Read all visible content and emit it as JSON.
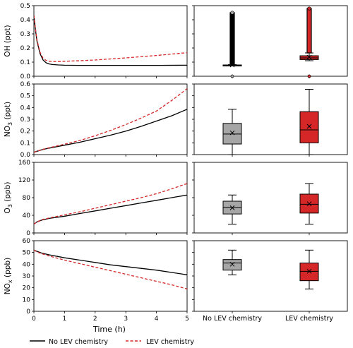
{
  "chart_data": {
    "type": "line",
    "xlabel": "Time (h)",
    "x_ticks": [
      0,
      1,
      2,
      3,
      4,
      5
    ],
    "xlim": [
      0,
      5
    ],
    "categories": [
      "No LEV chemistry",
      "LEV chemistry"
    ],
    "legend": {
      "placement": "bottom",
      "entries": [
        {
          "name": "No LEV chemistry",
          "color": "#000000",
          "style": "solid"
        },
        {
          "name": "LEV chemistry",
          "color": "#d62728",
          "style": "dashed"
        }
      ]
    },
    "box_colors": [
      "#a6a6a6",
      "#d62728"
    ],
    "panels": [
      {
        "ylabel_main": "OH (ppt)",
        "ylabel_sub": "",
        "ylim": [
          0,
          0.5
        ],
        "yticks": [
          0,
          0.1,
          0.2,
          0.3,
          0.4,
          0.5
        ],
        "ytick_labels": [
          "0.0",
          "0.1",
          "0.2",
          "0.3",
          "0.4",
          "0.5"
        ],
        "series": [
          {
            "name": "No LEV chemistry",
            "x": [
              0,
              0.05,
              0.1,
              0.2,
              0.3,
              0.4,
              0.5,
              0.6,
              0.8,
              1.0,
              1.5,
              2,
              3,
              4,
              5
            ],
            "y": [
              0.43,
              0.33,
              0.25,
              0.16,
              0.115,
              0.095,
              0.087,
              0.083,
              0.08,
              0.078,
              0.077,
              0.077,
              0.077,
              0.077,
              0.078
            ]
          },
          {
            "name": "LEV chemistry",
            "x": [
              0,
              0.05,
              0.1,
              0.2,
              0.3,
              0.4,
              0.5,
              0.6,
              0.8,
              1.0,
              1.5,
              2,
              3,
              4,
              5
            ],
            "y": [
              0.43,
              0.34,
              0.26,
              0.17,
              0.128,
              0.112,
              0.106,
              0.104,
              0.104,
              0.106,
              0.11,
              0.115,
              0.13,
              0.147,
              0.167
            ]
          }
        ],
        "boxes": [
          {
            "whisker_low": 0.078,
            "q1": 0.078,
            "median": 0.078,
            "q3": 0.08,
            "whisker_high": 0.082,
            "mean": 0.08,
            "outliers_dense": [
              0.082,
              0.45
            ],
            "outliers_extra": [
              0.0
            ]
          },
          {
            "whisker_low": 0.11,
            "q1": 0.118,
            "median": 0.13,
            "q3": 0.145,
            "whisker_high": 0.165,
            "mean": 0.135,
            "outliers_dense": [
              0.165,
              0.48
            ],
            "outliers_extra": [
              0.0
            ]
          }
        ]
      },
      {
        "ylabel_main": "NO",
        "ylabel_sub": "3",
        "ylabel_tail": " (ppt)",
        "ylim": [
          0,
          0.6
        ],
        "yticks": [
          0,
          0.1,
          0.2,
          0.3,
          0.4,
          0.5,
          0.6
        ],
        "ytick_labels": [
          "0.0",
          "0.1",
          "0.2",
          "0.3",
          "0.4",
          "0.5",
          "0.6"
        ],
        "series": [
          {
            "name": "No LEV chemistry",
            "x": [
              0,
              0.25,
              0.5,
              1,
              1.5,
              2,
              2.5,
              3,
              3.5,
              4,
              4.5,
              5
            ],
            "y": [
              0.02,
              0.04,
              0.055,
              0.08,
              0.105,
              0.135,
              0.165,
              0.2,
              0.24,
              0.285,
              0.33,
              0.385
            ]
          },
          {
            "name": "LEV chemistry",
            "x": [
              0,
              0.25,
              0.5,
              1,
              1.5,
              2,
              2.5,
              3,
              3.5,
              4,
              4.5,
              5
            ],
            "y": [
              0.02,
              0.042,
              0.058,
              0.088,
              0.12,
              0.16,
              0.205,
              0.255,
              0.31,
              0.37,
              0.46,
              0.56
            ]
          }
        ],
        "boxes": [
          {
            "whisker_low": 0.0,
            "q1": 0.09,
            "median": 0.175,
            "q3": 0.265,
            "whisker_high": 0.385,
            "mean": 0.185
          },
          {
            "whisker_low": 0.0,
            "q1": 0.1,
            "median": 0.21,
            "q3": 0.365,
            "whisker_high": 0.555,
            "mean": 0.24
          }
        ]
      },
      {
        "ylabel_main": "O",
        "ylabel_sub": "3",
        "ylabel_tail": " (ppb)",
        "ylim": [
          0,
          160
        ],
        "yticks": [
          0,
          40,
          80,
          120,
          160
        ],
        "ytick_labels": [
          "0",
          "40",
          "80",
          "120",
          "160"
        ],
        "series": [
          {
            "name": "No LEV chemistry",
            "x": [
              0,
              0.1,
              0.25,
              0.5,
              1,
              1.5,
              2,
              2.5,
              3,
              3.5,
              4,
              4.5,
              5
            ],
            "y": [
              20,
              25,
              29,
              33,
              38,
              44,
              50,
              56,
              62,
              68,
              74,
              80,
              86
            ]
          },
          {
            "name": "LEV chemistry",
            "x": [
              0,
              0.1,
              0.25,
              0.5,
              1,
              1.5,
              2,
              2.5,
              3,
              3.5,
              4,
              4.5,
              5
            ],
            "y": [
              20,
              25,
              30,
              34,
              41,
              48,
              56,
              64,
              72,
              80,
              89,
              100,
              112
            ]
          }
        ],
        "boxes": [
          {
            "whisker_low": 20,
            "q1": 43,
            "median": 58,
            "q3": 72,
            "whisker_high": 86,
            "mean": 57
          },
          {
            "whisker_low": 20,
            "q1": 45,
            "median": 65,
            "q3": 88,
            "whisker_high": 112,
            "mean": 66
          }
        ]
      },
      {
        "ylabel_main": "NO",
        "ylabel_sub": "x",
        "ylabel_tail": " (ppb)",
        "ylim": [
          0,
          60
        ],
        "yticks": [
          0,
          10,
          20,
          30,
          40,
          50,
          60
        ],
        "ytick_labels": [
          "0",
          "10",
          "20",
          "30",
          "40",
          "50",
          "60"
        ],
        "series": [
          {
            "name": "No LEV chemistry",
            "x": [
              0,
              0.1,
              0.25,
              0.5,
              1,
              1.5,
              2,
              2.5,
              3,
              3.5,
              4,
              4.5,
              5
            ],
            "y": [
              52,
              51,
              49.5,
              48,
              45.5,
              43.5,
              41.5,
              39.5,
              38,
              36.5,
              35,
              33,
              31
            ]
          },
          {
            "name": "LEV chemistry",
            "x": [
              0,
              0.1,
              0.25,
              0.5,
              1,
              1.5,
              2,
              2.5,
              3,
              3.5,
              4,
              4.5,
              5
            ],
            "y": [
              52,
              50.5,
              49,
              47,
              43.5,
              40.5,
              37.5,
              34.5,
              31.5,
              28.5,
              25.5,
              22.5,
              19
            ]
          }
        ],
        "boxes": [
          {
            "whisker_low": 31,
            "q1": 35,
            "median": 41,
            "q3": 44,
            "whisker_high": 52,
            "mean": 40
          },
          {
            "whisker_low": 19,
            "q1": 26,
            "median": 34,
            "q3": 41,
            "whisker_high": 52,
            "mean": 34
          }
        ]
      }
    ]
  }
}
